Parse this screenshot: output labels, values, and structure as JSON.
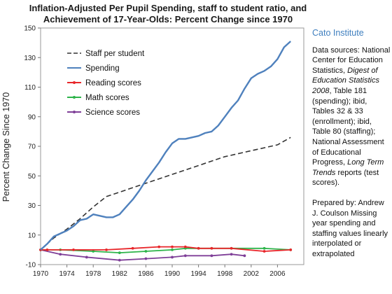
{
  "chart_data": {
    "type": "line",
    "title_lines": [
      "Inflation-Adjusted Per Pupil Spending, staff to student ratio, and",
      "Achievement of 17-Year-Olds:  Percent Change since 1970"
    ],
    "xlabel": "",
    "ylabel": "Percent Change Since 1970",
    "xlim": [
      1970,
      2010
    ],
    "ylim": [
      -10,
      150
    ],
    "x_ticks": [
      1970,
      1974,
      1978,
      1982,
      1986,
      1990,
      1994,
      1998,
      2002,
      2006
    ],
    "x_tick_labels": [
      "1970",
      "1974",
      "1978",
      "1982",
      "1986",
      "1990",
      "1994",
      "1998",
      "2002",
      "2006"
    ],
    "y_ticks": [
      -10,
      10,
      30,
      50,
      70,
      90,
      110,
      130,
      150
    ],
    "y_tick_labels": [
      "-10",
      "10",
      "30",
      "50",
      "70",
      "90",
      "110",
      "130",
      "150"
    ],
    "grid": false,
    "legend_position": "top-left",
    "series": [
      {
        "name": "Staff per student",
        "color": "#333333",
        "style": "dashed",
        "x": [
          1970,
          1972,
          1974,
          1976,
          1978,
          1980,
          1982,
          1984,
          1986,
          1988,
          1990,
          1992,
          1994,
          1996,
          1998,
          2000,
          2002,
          2004,
          2006,
          2008
        ],
        "y": [
          0,
          8,
          14,
          21,
          29,
          36,
          39,
          42,
          45,
          48,
          51,
          54,
          57,
          60,
          63,
          65,
          67,
          69,
          71,
          76
        ]
      },
      {
        "name": "Spending",
        "color": "#4f81bd",
        "style": "solid",
        "x": [
          1970,
          1971,
          1972,
          1973,
          1974,
          1975,
          1976,
          1977,
          1978,
          1979,
          1980,
          1981,
          1982,
          1983,
          1984,
          1985,
          1986,
          1987,
          1988,
          1989,
          1990,
          1991,
          1992,
          1993,
          1994,
          1995,
          1996,
          1997,
          1998,
          1999,
          2000,
          2001,
          2002,
          2003,
          2004,
          2005,
          2006,
          2007,
          2008
        ],
        "y": [
          0,
          4,
          9,
          11,
          13,
          16,
          20,
          21,
          24,
          23,
          22,
          22,
          24,
          29,
          34,
          40,
          47,
          53,
          59,
          66,
          72,
          75,
          75,
          76,
          77,
          79,
          80,
          84,
          90,
          96,
          101,
          109,
          116,
          119,
          121,
          124,
          129,
          137,
          141
        ]
      },
      {
        "name": "Reading scores",
        "color": "#e8262a",
        "style": "solid",
        "x": [
          1970,
          1971,
          1975,
          1980,
          1984,
          1988,
          1990,
          1992,
          1994,
          1996,
          1999,
          2004,
          2008
        ],
        "y": [
          0,
          0,
          0,
          0,
          1,
          2,
          2,
          2,
          1,
          1,
          1,
          -1,
          0
        ]
      },
      {
        "name": "Math scores",
        "color": "#2db44a",
        "style": "solid",
        "x": [
          1970,
          1973,
          1978,
          1982,
          1986,
          1990,
          1992,
          1994,
          1996,
          1999,
          2004,
          2008
        ],
        "y": [
          0,
          0,
          -1,
          -2,
          -1,
          0,
          1,
          1,
          1,
          1,
          1,
          0
        ]
      },
      {
        "name": "Science scores",
        "color": "#7f3f98",
        "style": "solid",
        "x": [
          1970,
          1973,
          1977,
          1982,
          1986,
          1990,
          1992,
          1996,
          1999,
          2001
        ],
        "y": [
          0,
          -3,
          -5,
          -7,
          -6,
          -5,
          -4,
          -4,
          -3,
          -4
        ]
      }
    ]
  },
  "side_panel": {
    "org": "Cato Institute",
    "sources_parts": [
      {
        "text": "Data sources: National Center for Education Statistics, ",
        "italic": false
      },
      {
        "text": "Digest of Education Statistics 2008",
        "italic": true
      },
      {
        "text": ", Table 181 (spending); ibid, Tables 32 & 33 (enrollment); ibid, Table 80 (staffing); National Assessment of Educational Progress, ",
        "italic": false
      },
      {
        "text": "Long Term Trends",
        "italic": true
      },
      {
        "text": " reports (test scores).",
        "italic": false
      }
    ],
    "prepared_parts": [
      {
        "text": "Prepared by: Andrew J. Coulson Missing year spending and staffing values linearly interpolated or extrapolated",
        "italic": false
      }
    ]
  }
}
